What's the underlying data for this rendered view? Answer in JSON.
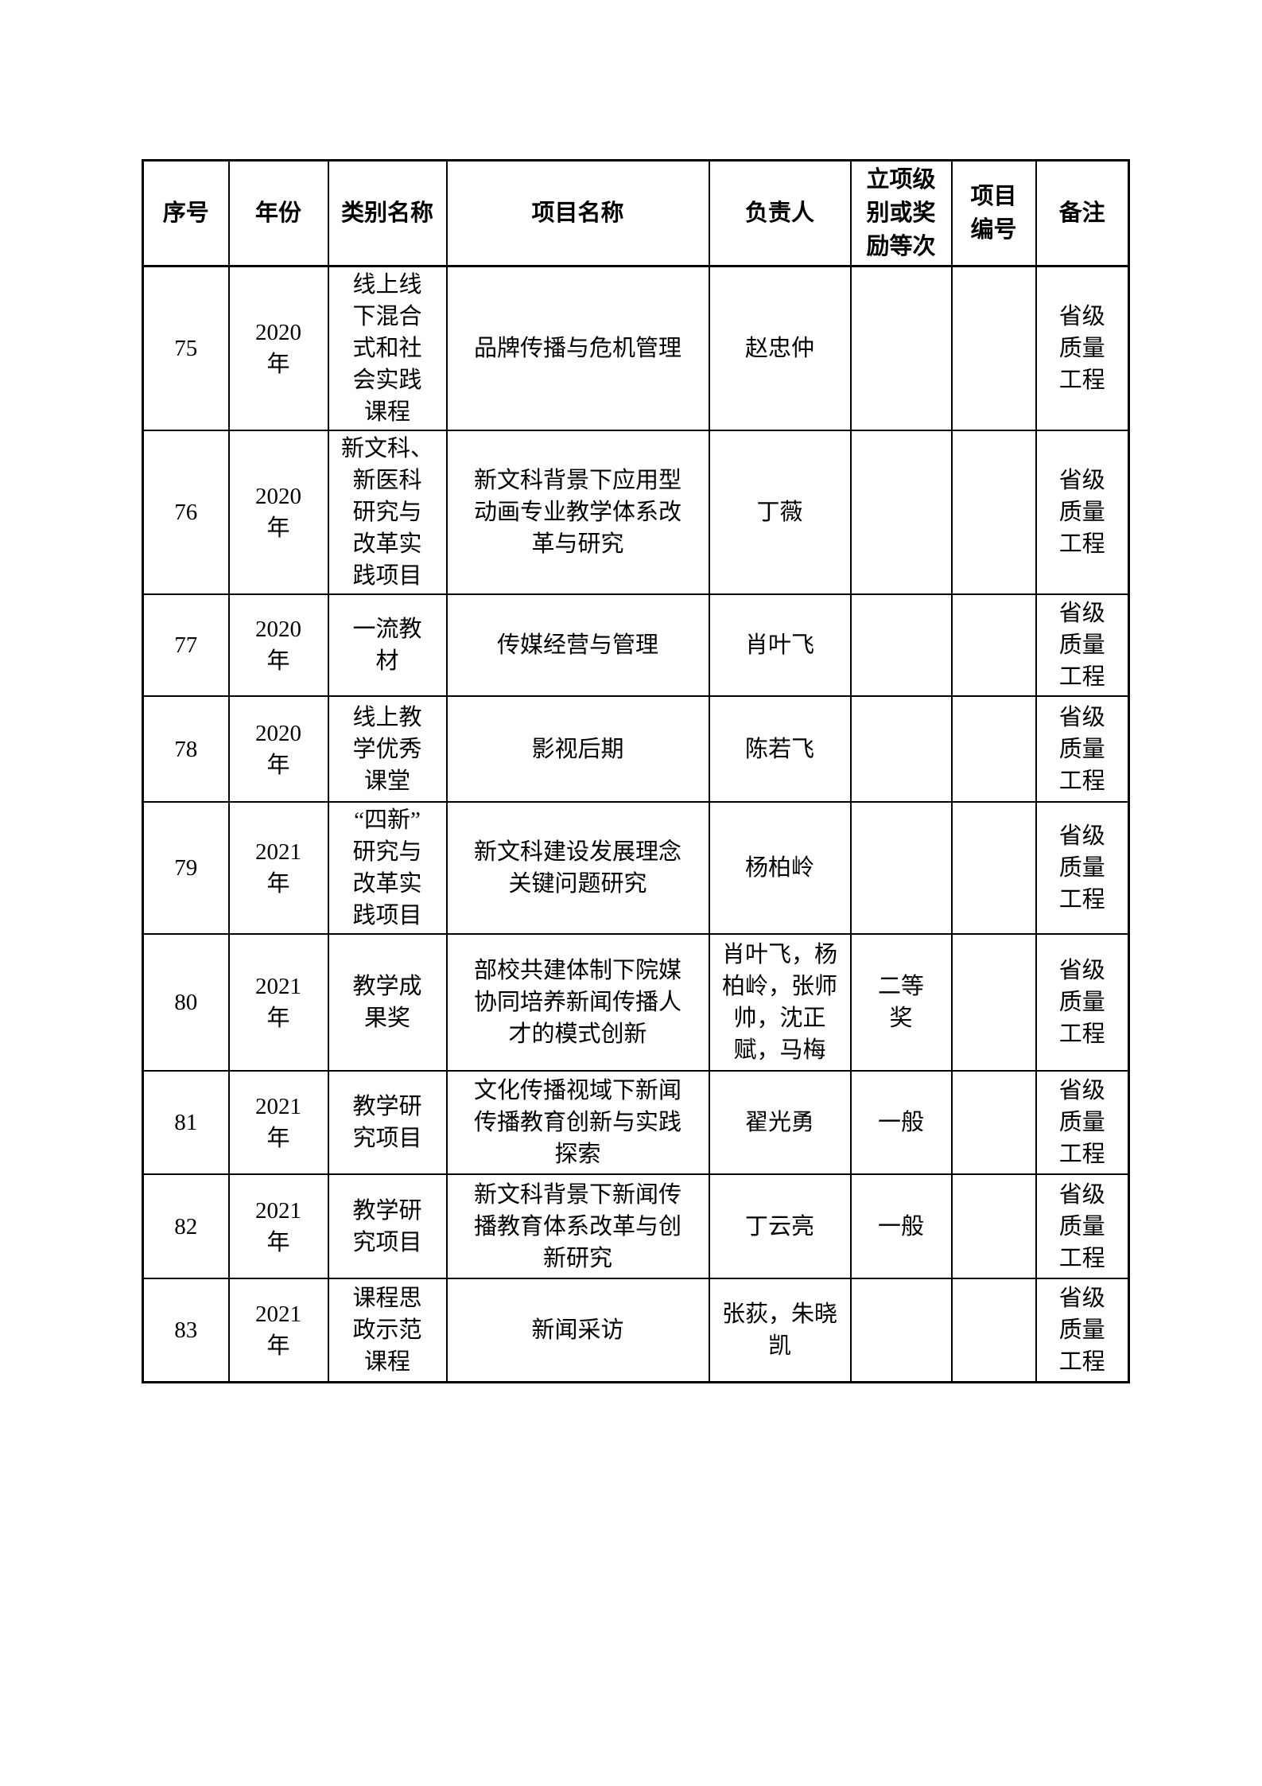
{
  "table": {
    "headers": {
      "index": "序号",
      "year": "年份",
      "category": "类别名称",
      "project": "项目名称",
      "leader": "负责人",
      "level": "立项级\n别或奖\n励等次",
      "code": "项目\n编号",
      "note": "备注"
    },
    "rows": [
      {
        "index": "75",
        "year": "2020\n年",
        "category": "线上线\n下混合\n式和社\n会实践\n课程",
        "project": "品牌传播与危机管理",
        "leader": "赵忠仲",
        "level": "",
        "code": "",
        "note": "省级\n质量\n工程"
      },
      {
        "index": "76",
        "year": "2020\n年",
        "category": "新文科、\n新医科\n研究与\n改革实\n践项目",
        "project": "新文科背景下应用型\n动画专业教学体系改\n革与研究",
        "leader": "丁薇",
        "level": "",
        "code": "",
        "note": "省级\n质量\n工程"
      },
      {
        "index": "77",
        "year": "2020\n年",
        "category": "一流教\n材",
        "project": "传媒经营与管理",
        "leader": "肖叶飞",
        "level": "",
        "code": "",
        "note": "省级\n质量\n工程"
      },
      {
        "index": "78",
        "year": "2020\n年",
        "category": "线上教\n学优秀\n课堂",
        "project": "影视后期",
        "leader": "陈若飞",
        "level": "",
        "code": "",
        "note": "省级\n质量\n工程"
      },
      {
        "index": "79",
        "year": "2021\n年",
        "category": "“四新”\n研究与\n改革实\n践项目",
        "project": "新文科建设发展理念\n关键问题研究",
        "leader": "杨柏岭",
        "level": "",
        "code": "",
        "note": "省级\n质量\n工程"
      },
      {
        "index": "80",
        "year": "2021\n年",
        "category": "教学成\n果奖",
        "project": "部校共建体制下院媒\n协同培养新闻传播人\n才的模式创新",
        "leader": "肖叶飞，杨\n柏岭，张师\n帅，沈正\n赋，马梅",
        "level": "二等\n奖",
        "code": "",
        "note": "省级\n质量\n工程"
      },
      {
        "index": "81",
        "year": "2021\n年",
        "category": "教学研\n究项目",
        "project": "文化传播视域下新闻\n传播教育创新与实践\n探索",
        "leader": "翟光勇",
        "level": "一般",
        "code": "",
        "note": "省级\n质量\n工程"
      },
      {
        "index": "82",
        "year": "2021\n年",
        "category": "教学研\n究项目",
        "project": "新文科背景下新闻传\n播教育体系改革与创\n新研究",
        "leader": "丁云亮",
        "level": "一般",
        "code": "",
        "note": "省级\n质量\n工程"
      },
      {
        "index": "83",
        "year": "2021\n年",
        "category": "课程思\n政示范\n课程",
        "project": "新闻采访",
        "leader": "张荻，朱晓\n凯",
        "level": "",
        "code": "",
        "note": "省级\n质量\n工程"
      }
    ]
  }
}
